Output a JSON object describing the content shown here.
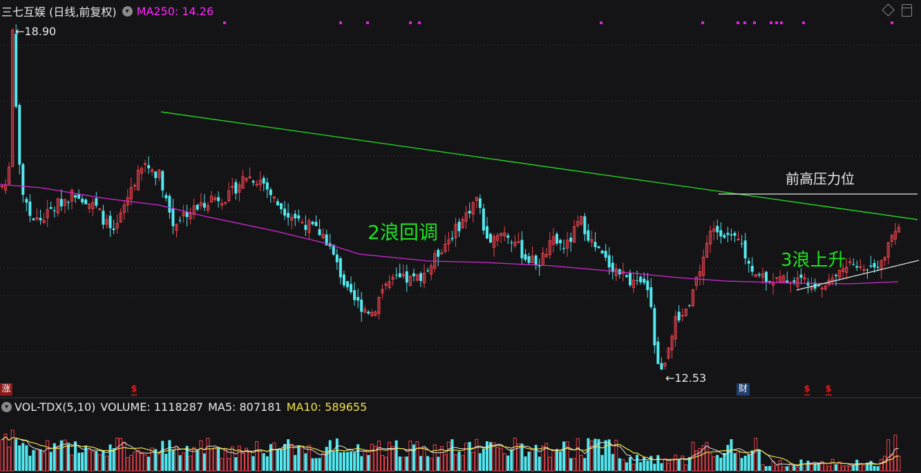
{
  "header": {
    "stock_name": "三七互娱 (日线,前复权)",
    "ma250_label": "MA250:",
    "ma250_value": "14.26",
    "chevron_icon": "chevron-down-icon"
  },
  "volume_header": {
    "indicator": "VOL-TDX(5,10)",
    "volume": "VOLUME: 1118287",
    "ma5": "MA5: 807181",
    "ma10": "MA10: 589655"
  },
  "markers": {
    "zhang": "涨",
    "cai": "财",
    "s": "$"
  },
  "toolbar": {
    "draw_icon": "diamond-icon",
    "window_icon": "window-icon"
  },
  "annotations": {
    "wave2": "2浪回调",
    "wave3": "3浪上升",
    "resistance": "前高压力位"
  },
  "extremes": {
    "high": "18.90",
    "low": "12.53",
    "arrow": "←"
  },
  "colors": {
    "up": "#f0424e",
    "down": "#53e8ef",
    "ma250": "#d42ad4",
    "trendline": "#22d522",
    "ma10": "#f5e34a",
    "ma5": "#e8e8e8"
  },
  "chart_data": [
    {
      "type": "candlestick",
      "title": "三七互娱 (日线,前复权)",
      "ylim": [
        12.53,
        18.9
      ],
      "annotations": [
        "2浪回调",
        "3浪上升",
        "前高压力位"
      ],
      "series": [
        {
          "name": "MA250",
          "last_value": 14.26
        }
      ]
    },
    {
      "type": "bar",
      "title": "VOL-TDX(5,10)",
      "series": [
        {
          "name": "VOLUME",
          "last_value": 1118287
        },
        {
          "name": "MA5",
          "last_value": 807181
        },
        {
          "name": "MA10",
          "last_value": 589655
        }
      ]
    }
  ]
}
